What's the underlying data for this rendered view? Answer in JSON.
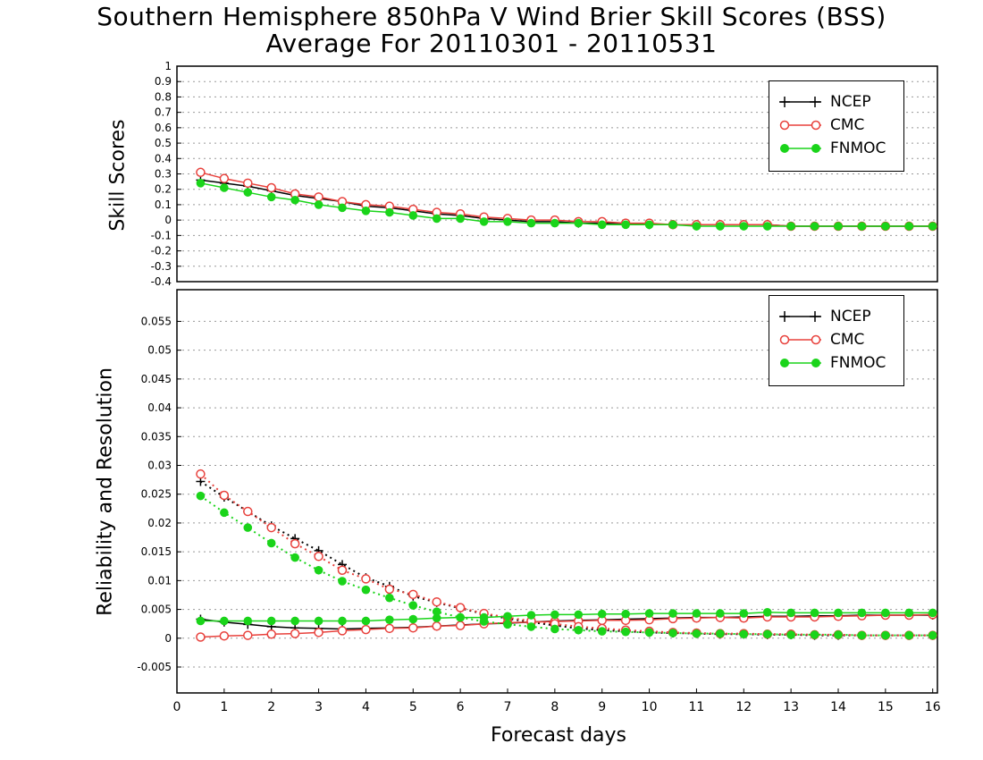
{
  "title_line1": "Southern Hemisphere 850hPa V Wind Brier Skill Scores (BSS)",
  "title_line2": "Average For 20110301 - 20110531",
  "legend": {
    "ncep": "NCEP",
    "cmc": "CMC",
    "fnmoc": "FNMOC"
  },
  "colors": {
    "ncep": "#000000",
    "cmc": "#e8413c",
    "fnmoc": "#1ad41a"
  },
  "chart_data": [
    {
      "type": "line",
      "ylabel": "Skill Scores",
      "xlabel": "",
      "ylim": [
        -0.4,
        1.0
      ],
      "xlim": [
        0,
        16.1
      ],
      "grid": true,
      "legend_position": "top-right",
      "yticks": [
        -0.4,
        -0.3,
        -0.2,
        -0.1,
        0,
        0.1,
        0.2,
        0.3,
        0.4,
        0.5,
        0.6,
        0.7,
        0.8,
        0.9,
        1
      ],
      "x": [
        0.5,
        1,
        1.5,
        2,
        2.5,
        3,
        3.5,
        4,
        4.5,
        5,
        5.5,
        6,
        6.5,
        7,
        7.5,
        8,
        8.5,
        9,
        9.5,
        10,
        10.5,
        11,
        11.5,
        12,
        12.5,
        13,
        13.5,
        14,
        14.5,
        15,
        15.5,
        16
      ],
      "series": [
        {
          "name": "NCEP",
          "values": [
            0.26,
            0.24,
            0.22,
            0.19,
            0.16,
            0.14,
            0.12,
            0.09,
            0.08,
            0.06,
            0.04,
            0.03,
            0.01,
            0.0,
            -0.01,
            -0.01,
            -0.02,
            -0.02,
            -0.02,
            -0.03,
            -0.03,
            -0.03,
            -0.03,
            -0.03,
            -0.03,
            -0.04,
            -0.04,
            -0.04,
            -0.04,
            -0.04,
            -0.04,
            -0.04
          ]
        },
        {
          "name": "CMC",
          "values": [
            0.31,
            0.27,
            0.24,
            0.21,
            0.17,
            0.15,
            0.12,
            0.1,
            0.09,
            0.07,
            0.05,
            0.04,
            0.02,
            0.01,
            0.0,
            0.0,
            -0.01,
            -0.01,
            -0.02,
            -0.02,
            -0.03,
            -0.03,
            -0.03,
            -0.03,
            -0.03,
            -0.04,
            -0.04,
            -0.04,
            -0.04,
            -0.04,
            -0.04,
            -0.04
          ]
        },
        {
          "name": "FNMOC",
          "values": [
            0.24,
            0.21,
            0.18,
            0.15,
            0.13,
            0.1,
            0.08,
            0.06,
            0.05,
            0.03,
            0.01,
            0.01,
            -0.01,
            -0.01,
            -0.02,
            -0.02,
            -0.02,
            -0.03,
            -0.03,
            -0.03,
            -0.03,
            -0.04,
            -0.04,
            -0.04,
            -0.04,
            -0.04,
            -0.04,
            -0.04,
            -0.04,
            -0.04,
            -0.04,
            -0.04
          ]
        }
      ]
    },
    {
      "type": "line",
      "ylabel": "Reliability and Resolution",
      "xlabel": "Forecast days",
      "ylim": [
        -0.0095,
        0.0605
      ],
      "xlim": [
        0,
        16.1
      ],
      "grid": true,
      "legend_position": "top-right",
      "yticks": [
        -0.005,
        0,
        0.005,
        0.01,
        0.015,
        0.02,
        0.025,
        0.03,
        0.035,
        0.04,
        0.045,
        0.05,
        0.055
      ],
      "xticks": [
        0,
        1,
        2,
        3,
        4,
        5,
        6,
        7,
        8,
        9,
        10,
        11,
        12,
        13,
        14,
        15,
        16
      ],
      "x": [
        0.5,
        1,
        1.5,
        2,
        2.5,
        3,
        3.5,
        4,
        4.5,
        5,
        5.5,
        6,
        6.5,
        7,
        7.5,
        8,
        8.5,
        9,
        9.5,
        10,
        10.5,
        11,
        11.5,
        12,
        12.5,
        13,
        13.5,
        14,
        14.5,
        15,
        15.5,
        16
      ],
      "series": [
        {
          "name": "NCEP reliability",
          "legend_key": "ncep",
          "style": "solid",
          "values": [
            0.0033,
            0.0028,
            0.0024,
            0.002,
            0.0018,
            0.0017,
            0.0016,
            0.0017,
            0.0018,
            0.0019,
            0.0021,
            0.0023,
            0.0025,
            0.0026,
            0.0028,
            0.003,
            0.0031,
            0.0032,
            0.0033,
            0.0034,
            0.0035,
            0.0036,
            0.0036,
            0.0037,
            0.0038,
            0.0038,
            0.0039,
            0.0039,
            0.004,
            0.004,
            0.004,
            0.004
          ]
        },
        {
          "name": "NCEP resolution",
          "legend_key": "ncep",
          "style": "dotted",
          "values": [
            0.0272,
            0.0245,
            0.022,
            0.0195,
            0.0173,
            0.0152,
            0.0128,
            0.0105,
            0.009,
            0.0073,
            0.0062,
            0.0052,
            0.0042,
            0.0034,
            0.0028,
            0.0022,
            0.0017,
            0.0014,
            0.0012,
            0.001,
            0.0009,
            0.0008,
            0.0007,
            0.0007,
            0.0006,
            0.0006,
            0.0005,
            0.0005,
            0.0005,
            0.0005,
            0.0005,
            0.0005
          ]
        },
        {
          "name": "CMC reliability",
          "legend_key": "cmc",
          "style": "solid",
          "values": [
            0.0002,
            0.0004,
            0.0005,
            0.0007,
            0.0008,
            0.001,
            0.0013,
            0.0015,
            0.0017,
            0.0018,
            0.0021,
            0.0022,
            0.0025,
            0.0027,
            0.0028,
            0.0029,
            0.003,
            0.0031,
            0.0031,
            0.0032,
            0.0034,
            0.0035,
            0.0036,
            0.0035,
            0.0037,
            0.0037,
            0.0037,
            0.0038,
            0.0039,
            0.004,
            0.004,
            0.0041
          ]
        },
        {
          "name": "CMC resolution",
          "legend_key": "cmc",
          "style": "dotted",
          "values": [
            0.0285,
            0.0248,
            0.022,
            0.0192,
            0.0164,
            0.0142,
            0.0118,
            0.0103,
            0.0085,
            0.0076,
            0.0063,
            0.0053,
            0.0043,
            0.0036,
            0.003,
            0.0025,
            0.002,
            0.0017,
            0.0014,
            0.0012,
            0.001,
            0.0009,
            0.0008,
            0.0008,
            0.0007,
            0.0007,
            0.0006,
            0.0006,
            0.0005,
            0.0005,
            0.0005,
            0.0005
          ]
        },
        {
          "name": "FNMOC reliability",
          "legend_key": "fnmoc",
          "style": "solid",
          "values": [
            0.003,
            0.003,
            0.003,
            0.003,
            0.003,
            0.003,
            0.003,
            0.003,
            0.0032,
            0.0033,
            0.0035,
            0.0036,
            0.0036,
            0.0038,
            0.004,
            0.0041,
            0.0041,
            0.0042,
            0.0042,
            0.0043,
            0.0043,
            0.0043,
            0.0043,
            0.0043,
            0.0045,
            0.0044,
            0.0044,
            0.0044,
            0.0044,
            0.0044,
            0.0044,
            0.0044
          ]
        },
        {
          "name": "FNMOC resolution",
          "legend_key": "fnmoc",
          "style": "dotted",
          "values": [
            0.0247,
            0.0218,
            0.0192,
            0.0165,
            0.014,
            0.0118,
            0.0099,
            0.0084,
            0.007,
            0.0057,
            0.0046,
            0.0036,
            0.0029,
            0.0024,
            0.002,
            0.0016,
            0.0014,
            0.0012,
            0.0011,
            0.001,
            0.0009,
            0.0008,
            0.0008,
            0.0007,
            0.0007,
            0.0006,
            0.0006,
            0.0006,
            0.0005,
            0.0005,
            0.0005,
            0.0005
          ]
        }
      ]
    }
  ]
}
